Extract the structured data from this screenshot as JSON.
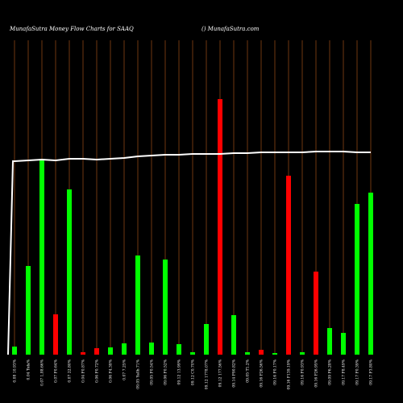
{
  "chart_data": {
    "type": "bar",
    "title": "MunafaSutra  Money Flow  Charts for SAAQ",
    "subtitle": "() MunafaSutra.com",
    "categories": [
      "0.08 10.93%",
      "0.04 Tofa%",
      "0.07 1,88.66%",
      "0.07 F0.64%",
      "0.07 22.80%",
      "0.04 F0.87%",
      "0.06 F0.72%",
      "0.06 F4.38%",
      "0.07 7.25%",
      "09.05 Ya0b.71%",
      "09.05 F0.54%",
      "09.06 F0.52%",
      "09.12 13.99%",
      "09.12 C0.70%",
      "09.12 1778.07%",
      "09.12 177.56%",
      "09.14 F90.82%",
      "09.05 T1.2%",
      "09.16 F26.56%",
      "09.16 F0.17%",
      "09.16 F139.19%",
      "09.16 F0.93%",
      "09.16 F26.95%",
      "09.09 F6.28%",
      "09.17 F8.49%",
      "09.17 F0.39%",
      "09.17 F3.80%"
    ],
    "values": [
      10,
      110,
      243,
      50,
      205,
      3,
      8,
      9,
      14,
      123,
      15,
      118,
      13,
      3,
      38,
      317,
      49,
      3,
      6,
      2,
      222,
      3,
      103,
      33,
      27,
      187,
      201
    ],
    "colors": [
      "#00ff00",
      "#00ff00",
      "#00ff00",
      "#ff0000",
      "#00ff00",
      "#ff0000",
      "#ff0000",
      "#00ff00",
      "#00ff00",
      "#00ff00",
      "#00ff00",
      "#00ff00",
      "#00ff00",
      "#00ff00",
      "#00ff00",
      "#ff0000",
      "#00ff00",
      "#00ff00",
      "#ff0000",
      "#00ff00",
      "#ff0000",
      "#00ff00",
      "#ff0000",
      "#00ff00",
      "#00ff00",
      "#00ff00",
      "#00ff00"
    ],
    "line": {
      "color": "#ffffff",
      "values": [
        240,
        241,
        242,
        241,
        243,
        243,
        242,
        243,
        244,
        246,
        247,
        248,
        248,
        249,
        249,
        249,
        250,
        250,
        251,
        251,
        251,
        251,
        252,
        252,
        252,
        251,
        251
      ]
    },
    "ylim": [
      0,
      440
    ],
    "gridline_color": "#8b4513"
  }
}
